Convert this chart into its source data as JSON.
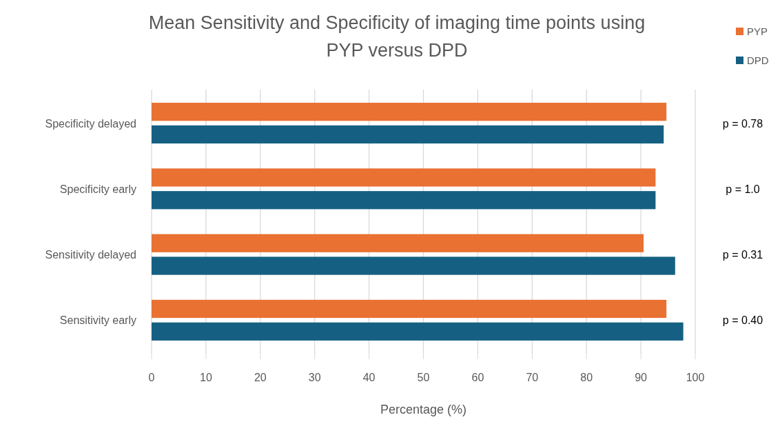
{
  "chart_data": {
    "type": "bar",
    "orientation": "horizontal",
    "title": "Mean Sensitivity and Specificity of imaging time points using PYP versus DPD",
    "xlabel": "Percentage (%)",
    "categories": [
      "Specificity delayed",
      "Specificity early",
      "Sensitivity delayed",
      "Sensitivity early"
    ],
    "series": [
      {
        "name": "PYP",
        "color": "#e97132",
        "values": [
          94.7,
          92.7,
          90.5,
          94.7
        ]
      },
      {
        "name": "DPD",
        "color": "#156082",
        "values": [
          94.2,
          92.7,
          96.3,
          97.8
        ]
      }
    ],
    "xlim": [
      0,
      100
    ],
    "xticks": [
      0,
      10,
      20,
      30,
      40,
      50,
      60,
      70,
      80,
      90,
      100
    ],
    "grid": "x",
    "legend": "top right",
    "annotations": [
      "p = 0.78",
      "p = 1.0",
      "p = 0.31",
      "p = 0.40"
    ]
  }
}
